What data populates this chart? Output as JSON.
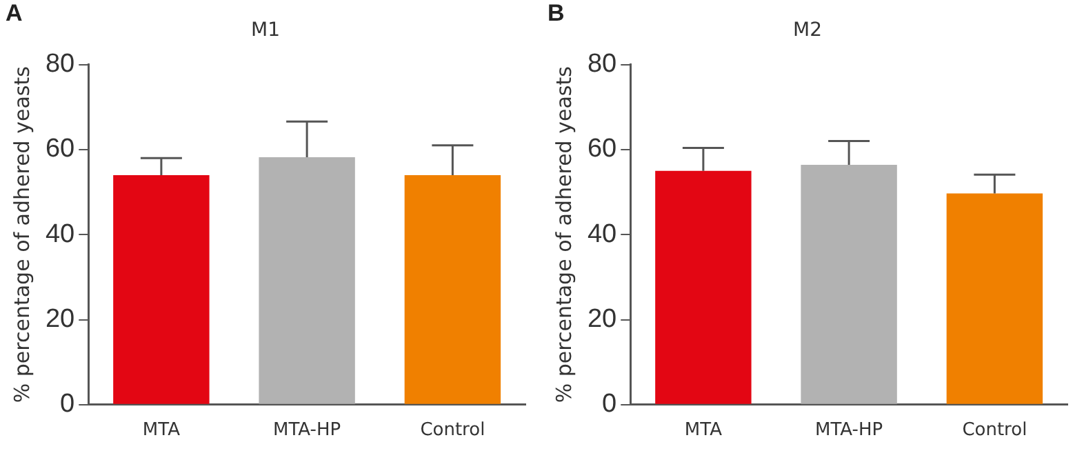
{
  "chart_data": [
    {
      "type": "bar",
      "title": "M1",
      "ylabel": "% percentage of adhered yeasts",
      "annotations": [
        "A"
      ],
      "categories": [
        "MTA",
        "MTA-HP",
        "Control"
      ],
      "values": [
        54,
        58.2,
        54
      ],
      "colors": [
        "#e30613",
        "#b2b2b2",
        "#f08000"
      ],
      "errors": [
        4,
        8.4,
        7
      ],
      "ylim": [
        0,
        80
      ],
      "yticks": [
        0,
        20,
        40,
        60,
        80
      ],
      "grid": false,
      "legend": false
    },
    {
      "type": "bar",
      "title": "M2",
      "ylabel": "% percentage of adhered yeasts",
      "annotations": [
        "B"
      ],
      "categories": [
        "MTA",
        "MTA-HP",
        "Control"
      ],
      "values": [
        55,
        56.4,
        49.7
      ],
      "colors": [
        "#e30613",
        "#b2b2b2",
        "#f08000"
      ],
      "errors": [
        5.4,
        5.6,
        4.4
      ],
      "ylim": [
        0,
        80
      ],
      "yticks": [
        0,
        20,
        40,
        60,
        80
      ],
      "grid": false,
      "legend": false
    }
  ]
}
